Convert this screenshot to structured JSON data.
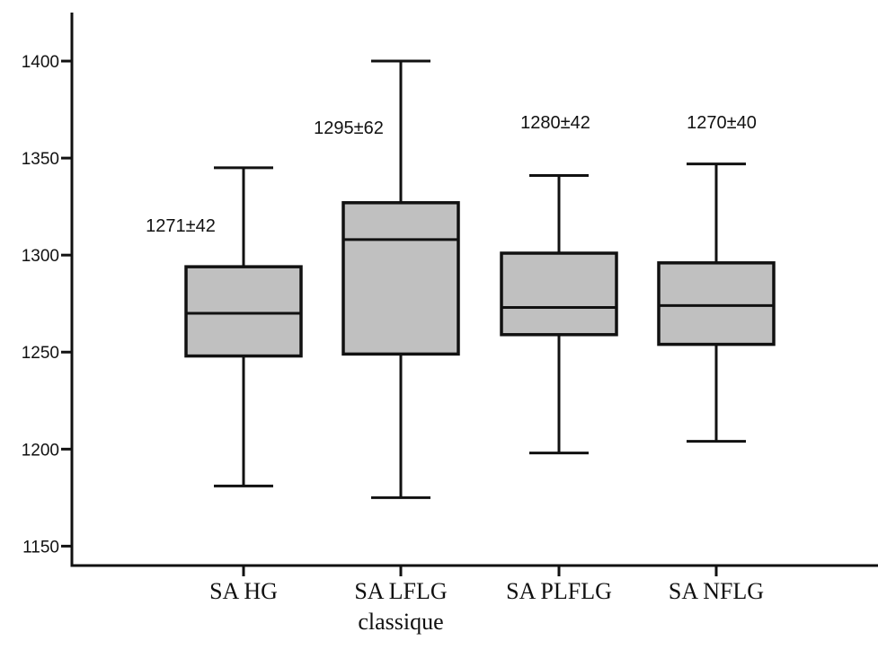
{
  "chart_data": {
    "type": "box",
    "title": "",
    "xlabel": "",
    "ylabel": "",
    "ylim": [
      1140,
      1425
    ],
    "yticks": [
      1150,
      1200,
      1250,
      1300,
      1350,
      1400
    ],
    "grid": false,
    "legend": "none",
    "box_fill": "#c0c0c0",
    "line_color": "#111111",
    "categories": [
      {
        "label_lines": [
          "SA HG"
        ],
        "whisker_low": 1181,
        "q1": 1248,
        "median": 1270,
        "q3": 1294,
        "whisker_high": 1345,
        "annotation": "1271±42"
      },
      {
        "label_lines": [
          "SA LFLG",
          "classique"
        ],
        "whisker_low": 1175,
        "q1": 1249,
        "median": 1308,
        "q3": 1327,
        "whisker_high": 1400,
        "annotation": "1295±62"
      },
      {
        "label_lines": [
          "SA PLFLG"
        ],
        "whisker_low": 1198,
        "q1": 1259,
        "median": 1273,
        "q3": 1301,
        "whisker_high": 1341,
        "annotation": "1280±42"
      },
      {
        "label_lines": [
          "SA NFLG"
        ],
        "whisker_low": 1204,
        "q1": 1254,
        "median": 1274,
        "q3": 1296,
        "whisker_high": 1347,
        "annotation": "1270±40"
      }
    ]
  }
}
